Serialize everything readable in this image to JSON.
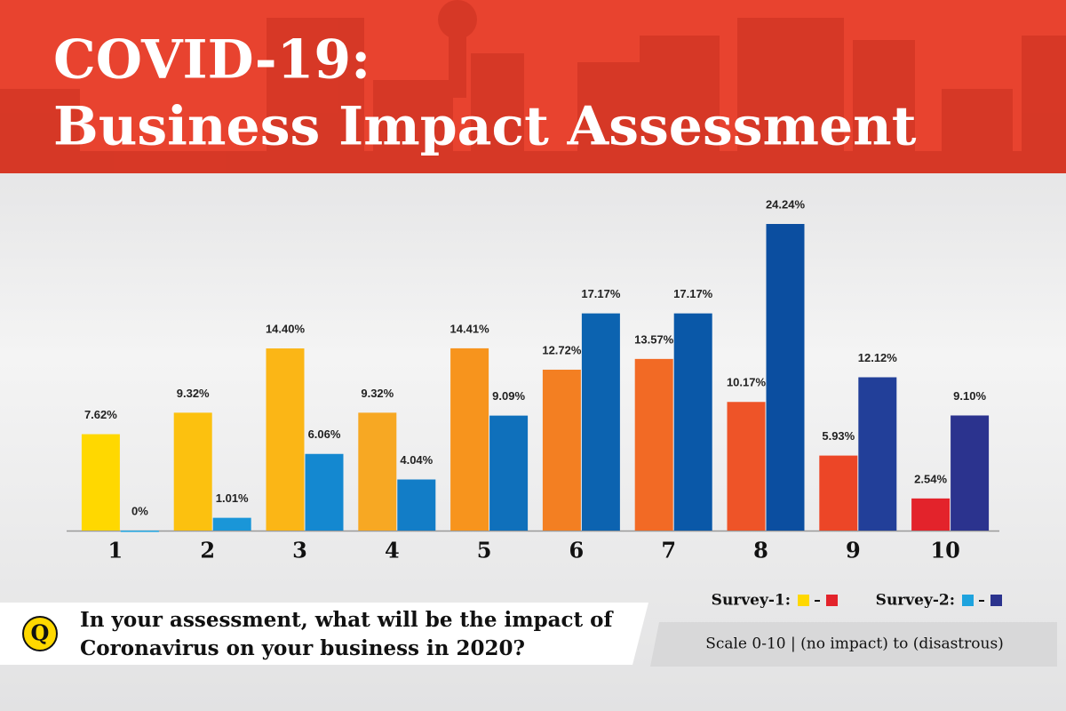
{
  "chart_data": {
    "type": "bar",
    "title_lines": [
      "COVID-19:",
      "Business Impact Assessment"
    ],
    "categories": [
      "1",
      "2",
      "3",
      "4",
      "5",
      "6",
      "7",
      "8",
      "9",
      "10"
    ],
    "series": [
      {
        "name": "Survey-1:",
        "colors": [
          "#ffd800",
          "#fcc10f",
          "#fbb616",
          "#f7a823",
          "#f7941d",
          "#f37f22",
          "#f26a25",
          "#ee5428",
          "#ec4627",
          "#e3232b"
        ],
        "values": [
          7.62,
          9.32,
          14.4,
          9.32,
          14.41,
          12.72,
          13.57,
          10.17,
          5.93,
          2.54
        ],
        "value_labels": [
          "7.62%",
          "9.32%",
          "14.40%",
          "9.32%",
          "14.41%",
          "12.72%",
          "13.57%",
          "10.17%",
          "5.93%",
          "2.54%"
        ]
      },
      {
        "name": "Survey-2:",
        "colors": [
          "#1ea3de",
          "#1a96d8",
          "#1488d0",
          "#127dc7",
          "#0f70bb",
          "#0c63b0",
          "#0a58a8",
          "#0b4ea0",
          "#223f99",
          "#2b338e"
        ],
        "values": [
          0,
          1.01,
          6.06,
          4.04,
          9.09,
          17.17,
          17.17,
          24.24,
          12.12,
          9.1
        ],
        "value_labels": [
          "0%",
          "1.01%",
          "6.06%",
          "4.04%",
          "9.09%",
          "17.17%",
          "17.17%",
          "24.24%",
          "12.12%",
          "9.10%"
        ]
      }
    ],
    "question_icon": "Q",
    "question_lines": [
      "In your assessment, what will be the impact of",
      "Coronavirus on your business in 2020?"
    ],
    "note": "Scale 0-10 | (no impact) to (disastrous)"
  }
}
